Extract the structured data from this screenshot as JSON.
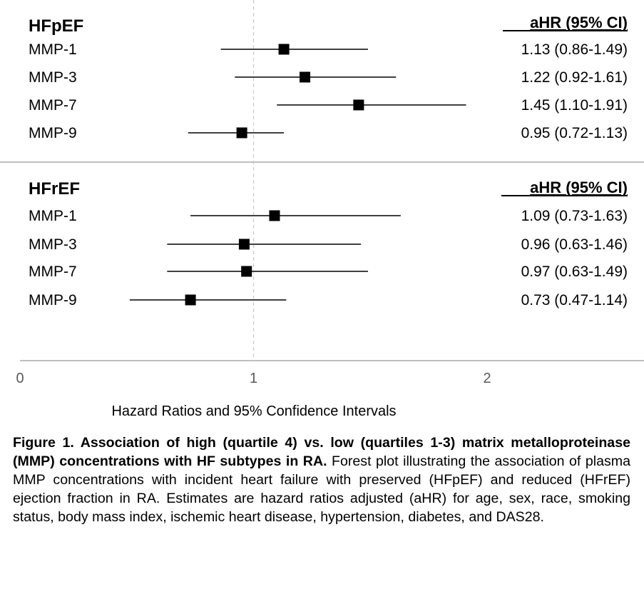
{
  "chart_data": {
    "type": "forest",
    "xlabel": "Hazard Ratios and 95% Confidence Intervals",
    "xlim": [
      0,
      2.7
    ],
    "xticks": [
      0,
      1,
      2
    ],
    "xtick_labels": [
      "0",
      "1",
      "2"
    ],
    "reference_line": 1,
    "estimate_header": "aHR (95% CI)",
    "panels": [
      {
        "title": "HFpEF",
        "rows": [
          {
            "label": "MMP-1",
            "estimate": 1.13,
            "lower": 0.86,
            "upper": 1.49,
            "text": "1.13 (0.86-1.49)"
          },
          {
            "label": "MMP-3",
            "estimate": 1.22,
            "lower": 0.92,
            "upper": 1.61,
            "text": "1.22 (0.92-1.61)"
          },
          {
            "label": "MMP-7",
            "estimate": 1.45,
            "lower": 1.1,
            "upper": 1.91,
            "text": "1.45 (1.10-1.91)"
          },
          {
            "label": "MMP-9",
            "estimate": 0.95,
            "lower": 0.72,
            "upper": 1.13,
            "text": "0.95 (0.72-1.13)"
          }
        ]
      },
      {
        "title": "HFrEF",
        "rows": [
          {
            "label": "MMP-1",
            "estimate": 1.09,
            "lower": 0.73,
            "upper": 1.63,
            "text": "1.09 (0.73-1.63)"
          },
          {
            "label": "MMP-3",
            "estimate": 0.96,
            "lower": 0.63,
            "upper": 1.46,
            "text": "0.96 (0.63-1.46)"
          },
          {
            "label": "MMP-7",
            "estimate": 0.97,
            "lower": 0.63,
            "upper": 1.49,
            "text": "0.97 (0.63-1.49)"
          },
          {
            "label": "MMP-9",
            "estimate": 0.73,
            "lower": 0.47,
            "upper": 1.14,
            "text": "0.73 (0.47-1.14)"
          }
        ]
      }
    ]
  },
  "caption": {
    "bold": "Figure 1. Association of high (quartile 4) vs. low (quartiles 1-3) matrix metalloproteinase (MMP) concentrations with HF subtypes in RA.",
    "text": " Forest plot illustrating the association of plasma MMP concentrations with incident heart failure with preserved (HFpEF) and reduced (HFrEF) ejection fraction in RA. Estimates are hazard ratios adjusted (aHR) for age, sex, race, smoking status, body mass index, ischemic heart disease, hypertension, diabetes, and DAS28."
  },
  "colors": {
    "marker": "#000000",
    "ci_line": "#404040",
    "reference_line": "#c8c8c8",
    "separator": "#bfbfbf",
    "tick_label": "#595959"
  }
}
